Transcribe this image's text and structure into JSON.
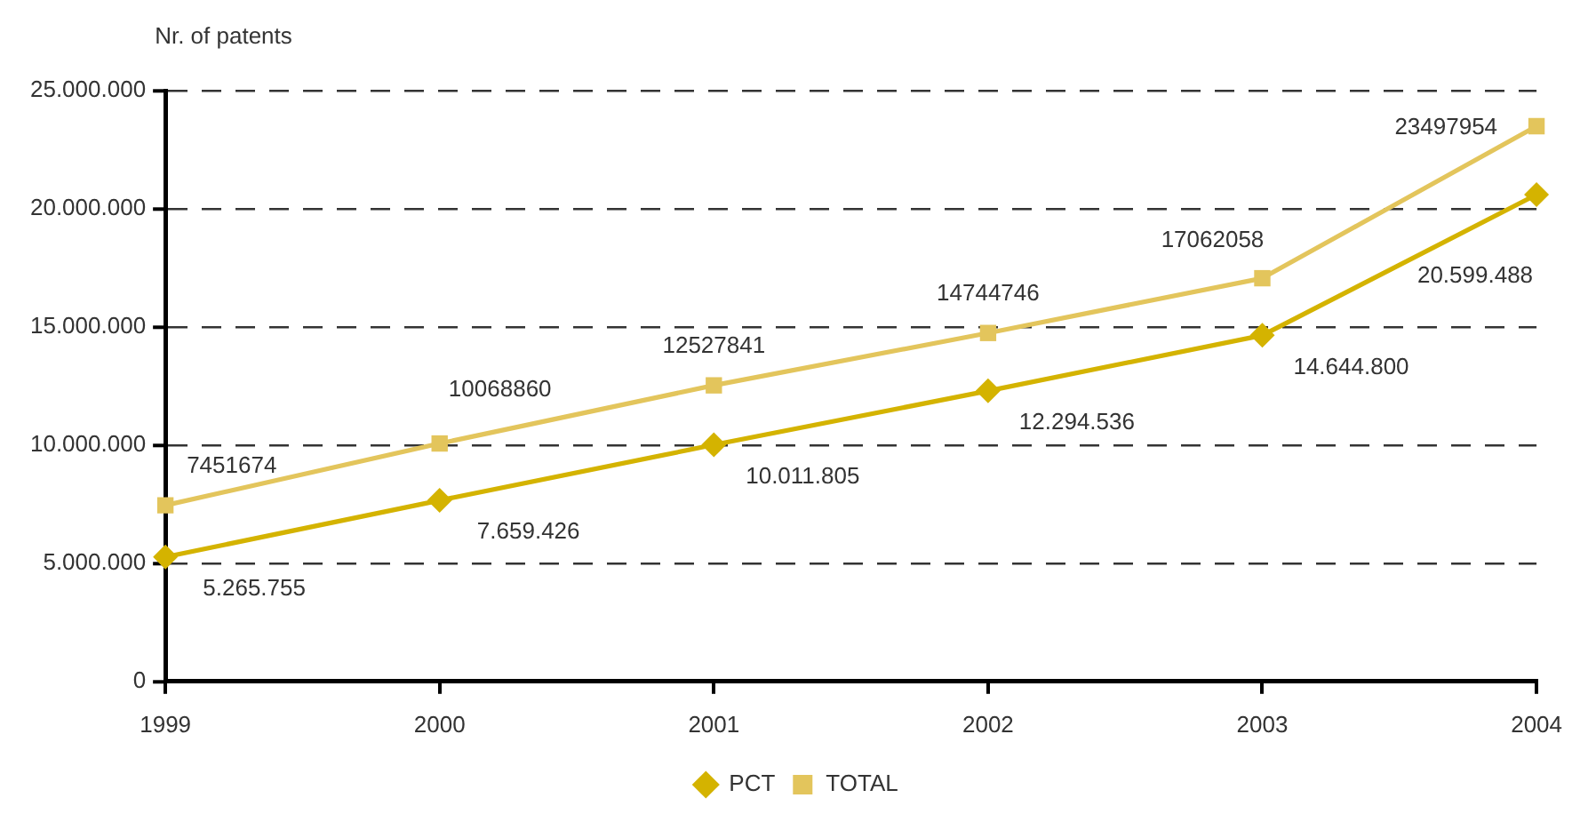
{
  "chart_data": {
    "type": "line",
    "ylabel": "Nr. of patents",
    "categories": [
      "1999",
      "2000",
      "2001",
      "2002",
      "2003",
      "2004"
    ],
    "series": [
      {
        "name": "PCT",
        "color": "#d4b300",
        "marker": "diamond",
        "values": [
          5265755,
          7659426,
          10011805,
          12294536,
          14644800,
          20599488
        ],
        "value_labels": [
          "5.265.755",
          "7.659.426",
          "10.011.805",
          "12.294.536",
          "14.644.800",
          "20.599.488"
        ]
      },
      {
        "name": "TOTAL",
        "color": "#e3c55c",
        "marker": "square",
        "values": [
          7451674,
          10068860,
          12527841,
          14744746,
          17062058,
          23497954
        ],
        "value_labels": [
          "7451674",
          "10068860",
          "12527841",
          "14744746",
          "17062058",
          "23497954"
        ]
      }
    ],
    "ylim": [
      0,
      25000000
    ],
    "yticks": [
      0,
      {
        "value": 5000000,
        "label": "5.000.000"
      },
      {
        "value": 10000000,
        "label": "10.000.000"
      },
      {
        "value": 15000000,
        "label": "15.000.000"
      },
      {
        "value": 20000000,
        "label": "20.000.000"
      },
      {
        "value": 25000000,
        "label": "25.000.000"
      }
    ],
    "grid": "y",
    "legend": "bottom",
    "line_style": "solid"
  }
}
